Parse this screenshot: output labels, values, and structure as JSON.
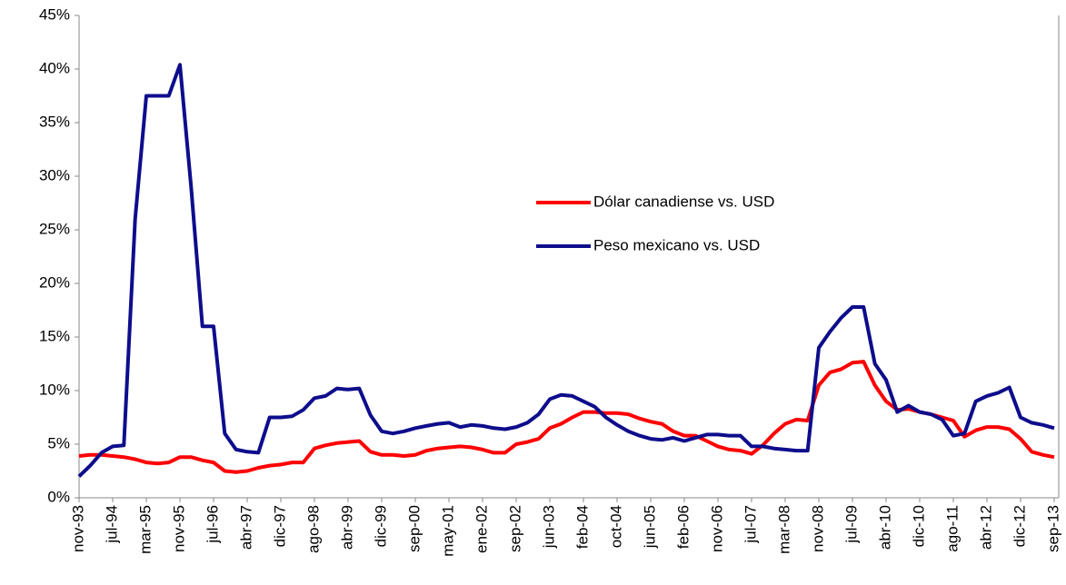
{
  "chart_data": {
    "type": "line",
    "categories": [
      "nov-93",
      null,
      null,
      "jul-94",
      null,
      null,
      "mar-95",
      null,
      null,
      "nov-95",
      null,
      null,
      "jul-96",
      null,
      null,
      "abr-97",
      null,
      null,
      "dic-97",
      null,
      null,
      "ago-98",
      null,
      null,
      "abr-99",
      null,
      null,
      "dic-99",
      null,
      null,
      "sep-00",
      null,
      null,
      "may-01",
      null,
      null,
      "ene-02",
      null,
      null,
      "sep-02",
      null,
      null,
      "jun-03",
      null,
      null,
      "feb-04",
      null,
      null,
      "oct-04",
      null,
      null,
      "jun-05",
      null,
      null,
      "feb-06",
      null,
      null,
      "nov-06",
      null,
      null,
      "jul-07",
      null,
      null,
      "mar-08",
      null,
      null,
      "nov-08",
      null,
      null,
      "jul-09",
      null,
      null,
      "abr-10",
      null,
      null,
      "dic-10",
      null,
      null,
      "ago-11",
      null,
      null,
      "abr-12",
      null,
      null,
      "dic-12",
      null,
      null,
      "sep-13"
    ],
    "series": [
      {
        "name": "Dólar canadiense vs. USD",
        "color": "#ff0000",
        "values": [
          3.9,
          4.0,
          4.0,
          3.9,
          3.8,
          3.6,
          3.3,
          3.2,
          3.3,
          3.8,
          3.8,
          3.5,
          3.3,
          2.5,
          2.4,
          2.5,
          2.8,
          3.0,
          3.1,
          3.3,
          3.3,
          4.6,
          4.9,
          5.1,
          5.2,
          5.3,
          4.3,
          4.0,
          4.0,
          3.9,
          4.0,
          4.4,
          4.6,
          4.7,
          4.8,
          4.7,
          4.5,
          4.2,
          4.2,
          5.0,
          5.2,
          5.5,
          6.5,
          6.9,
          7.5,
          8.0,
          8.0,
          7.9,
          7.9,
          7.8,
          7.4,
          7.1,
          6.9,
          6.2,
          5.8,
          5.8,
          5.3,
          4.8,
          4.5,
          4.4,
          4.1,
          4.9,
          6.0,
          6.9,
          7.3,
          7.2,
          10.5,
          11.7,
          12.0,
          12.6,
          12.7,
          10.5,
          9.0,
          8.2,
          8.3,
          8.0,
          7.8,
          7.5,
          7.2,
          5.7,
          6.3,
          6.6,
          6.6,
          6.4,
          5.5,
          4.3,
          4.0,
          3.8
        ]
      },
      {
        "name": "Peso mexicano vs. USD",
        "color": "#0d0d8c",
        "values": [
          2.0,
          3.0,
          4.2,
          4.8,
          4.9,
          26,
          37.5,
          37.5,
          37.5,
          40.4,
          29,
          16,
          16,
          6,
          4.5,
          4.3,
          4.2,
          7.5,
          7.5,
          7.6,
          8.2,
          9.3,
          9.5,
          10.2,
          10.1,
          10.2,
          7.7,
          6.2,
          6.0,
          6.2,
          6.5,
          6.7,
          6.9,
          7.0,
          6.6,
          6.8,
          6.7,
          6.5,
          6.4,
          6.6,
          7.0,
          7.8,
          9.2,
          9.6,
          9.5,
          9.0,
          8.5,
          7.5,
          6.8,
          6.2,
          5.8,
          5.5,
          5.4,
          5.6,
          5.3,
          5.6,
          5.9,
          5.9,
          5.8,
          5.8,
          4.8,
          4.8,
          4.6,
          4.5,
          4.4,
          4.4,
          14,
          15.5,
          16.8,
          17.8,
          17.8,
          12.5,
          11,
          8,
          8.6,
          8,
          7.8,
          7.3,
          5.8,
          6,
          9,
          9.5,
          9.8,
          10.3,
          7.5,
          7,
          6.8,
          6.5
        ]
      }
    ],
    "ylim": [
      0,
      45
    ],
    "yticks": [
      {
        "value": 0,
        "label": "0%"
      },
      {
        "value": 5,
        "label": "5%"
      },
      {
        "value": 10,
        "label": "10%"
      },
      {
        "value": 15,
        "label": "15%"
      },
      {
        "value": 20,
        "label": "20%"
      },
      {
        "value": 25,
        "label": "25%"
      },
      {
        "value": 30,
        "label": "30%"
      },
      {
        "value": 35,
        "label": "35%"
      },
      {
        "value": 40,
        "label": "40%"
      },
      {
        "value": 45,
        "label": "45%"
      }
    ],
    "grid": false
  }
}
